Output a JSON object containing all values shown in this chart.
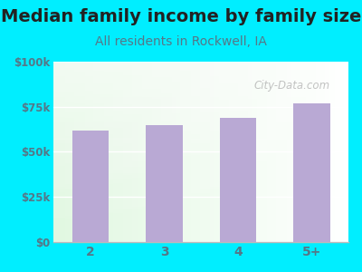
{
  "title": "Median family income by family size",
  "subtitle": "All residents in Rockwell, IA",
  "categories": [
    "2",
    "3",
    "4",
    "5+"
  ],
  "values": [
    62000,
    65000,
    69000,
    77000
  ],
  "bar_color": "#b9a9d4",
  "ylim": [
    0,
    100000
  ],
  "yticks": [
    0,
    25000,
    50000,
    75000,
    100000
  ],
  "ytick_labels": [
    "$0",
    "$25k",
    "$50k",
    "$75k",
    "$100k"
  ],
  "title_fontsize": 14,
  "subtitle_fontsize": 10,
  "title_color": "#222222",
  "subtitle_color": "#557788",
  "tick_color": "#557788",
  "bg_outer": "#00eeff",
  "watermark": "City-Data.com",
  "watermark_color": "#aaaaaa"
}
